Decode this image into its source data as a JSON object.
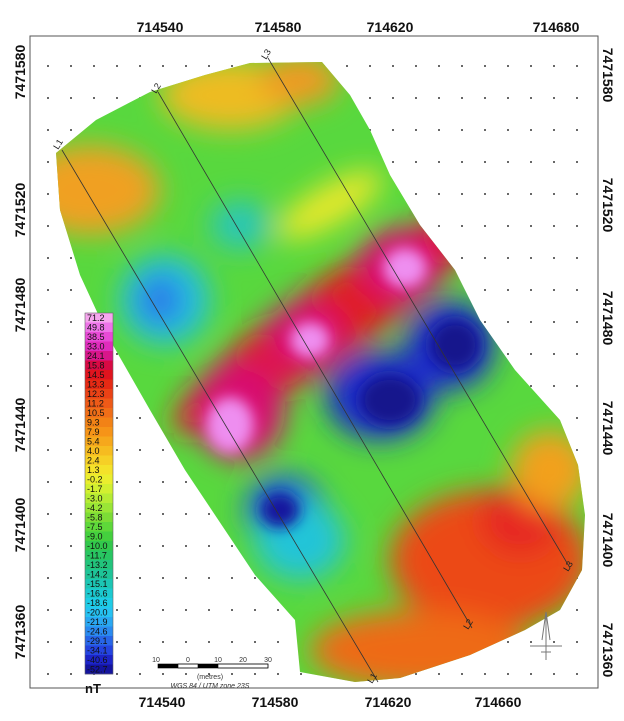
{
  "top_axis_labels": [
    "714540",
    "714580",
    "714620",
    "714680"
  ],
  "bottom_axis_labels": [
    "714540",
    "714580",
    "714620",
    "714660"
  ],
  "left_axis_labels": [
    "7471580",
    "7471520",
    "7471480",
    "7471440",
    "7471400",
    "7471360"
  ],
  "right_axis_labels": [
    "7471580",
    "7471520",
    "7471480",
    "7471440",
    "7471400",
    "7471360"
  ],
  "survey_lines": [
    "L1",
    "L2",
    "L3"
  ],
  "legend": {
    "unit": "nT",
    "values": [
      "71.2",
      "49.8",
      "38.5",
      "33.0",
      "24.1",
      "15.8",
      "14.5",
      "13.3",
      "12.3",
      "11.2",
      "10.5",
      "9.3",
      "7.9",
      "5.4",
      "4.0",
      "2.4",
      "1.3",
      "-0.2",
      "-1.7",
      "-3.0",
      "-4.2",
      "-5.8",
      "-7.5",
      "-9.0",
      "-10.0",
      "-11.7",
      "-13.2",
      "-14.2",
      "-15.1",
      "-16.6",
      "-18.6",
      "-20.0",
      "-21.9",
      "-24.6",
      "-29.1",
      "-34.1",
      "-40.6",
      "-52.7"
    ],
    "colors": [
      "#f6a6ee",
      "#ee74e8",
      "#e84ad6",
      "#e02cbc",
      "#d8168a",
      "#d80a44",
      "#e0141e",
      "#e62a14",
      "#ea4216",
      "#ee5a18",
      "#f06e18",
      "#f28216",
      "#f69418",
      "#f6a81c",
      "#f6bc20",
      "#f6d026",
      "#f4e22a",
      "#eaee2e",
      "#d2f030",
      "#b6ec34",
      "#9ae636",
      "#7cdc36",
      "#5ed83a",
      "#44d03e",
      "#32c84c",
      "#28c662",
      "#22c47c",
      "#1ec498",
      "#1cc6b4",
      "#1ccad0",
      "#1ecce6",
      "#26c2f2",
      "#2aa8f2",
      "#2a8af0",
      "#2866e8",
      "#2444e0",
      "#1c24c8",
      "#14149e"
    ]
  },
  "scale_bar": {
    "ticks": [
      "10",
      "0",
      "10",
      "20",
      "30"
    ],
    "unit": "(metres)",
    "projection": "WGS 84 / UTM zone 23S"
  }
}
